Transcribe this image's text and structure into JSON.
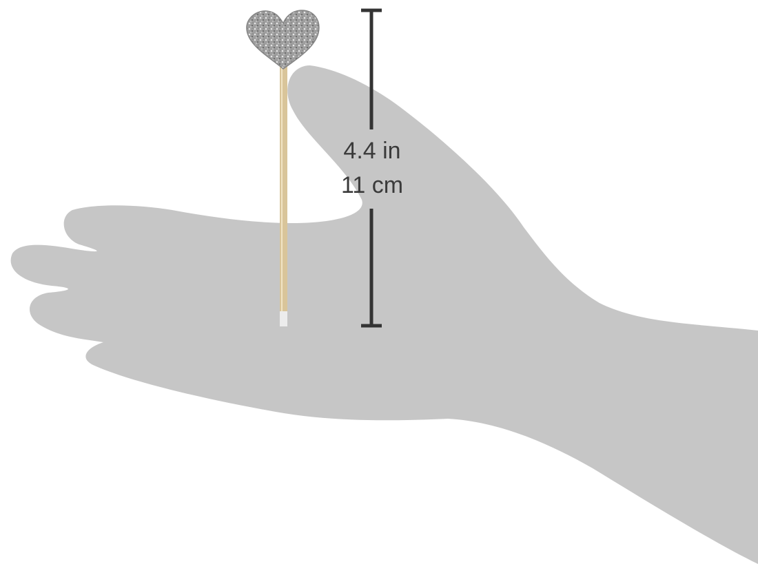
{
  "measurement": {
    "inches": "4.4 in",
    "centimeters": "11 cm"
  },
  "colors": {
    "background": "#ffffff",
    "hand": "#c6c6c6",
    "stick": "#d9c59a",
    "heart": "#9a9a9a",
    "ruler": "#333333"
  },
  "icons": {
    "object": "heart-topper-icon",
    "ruler": "dimension-bar-icon"
  }
}
